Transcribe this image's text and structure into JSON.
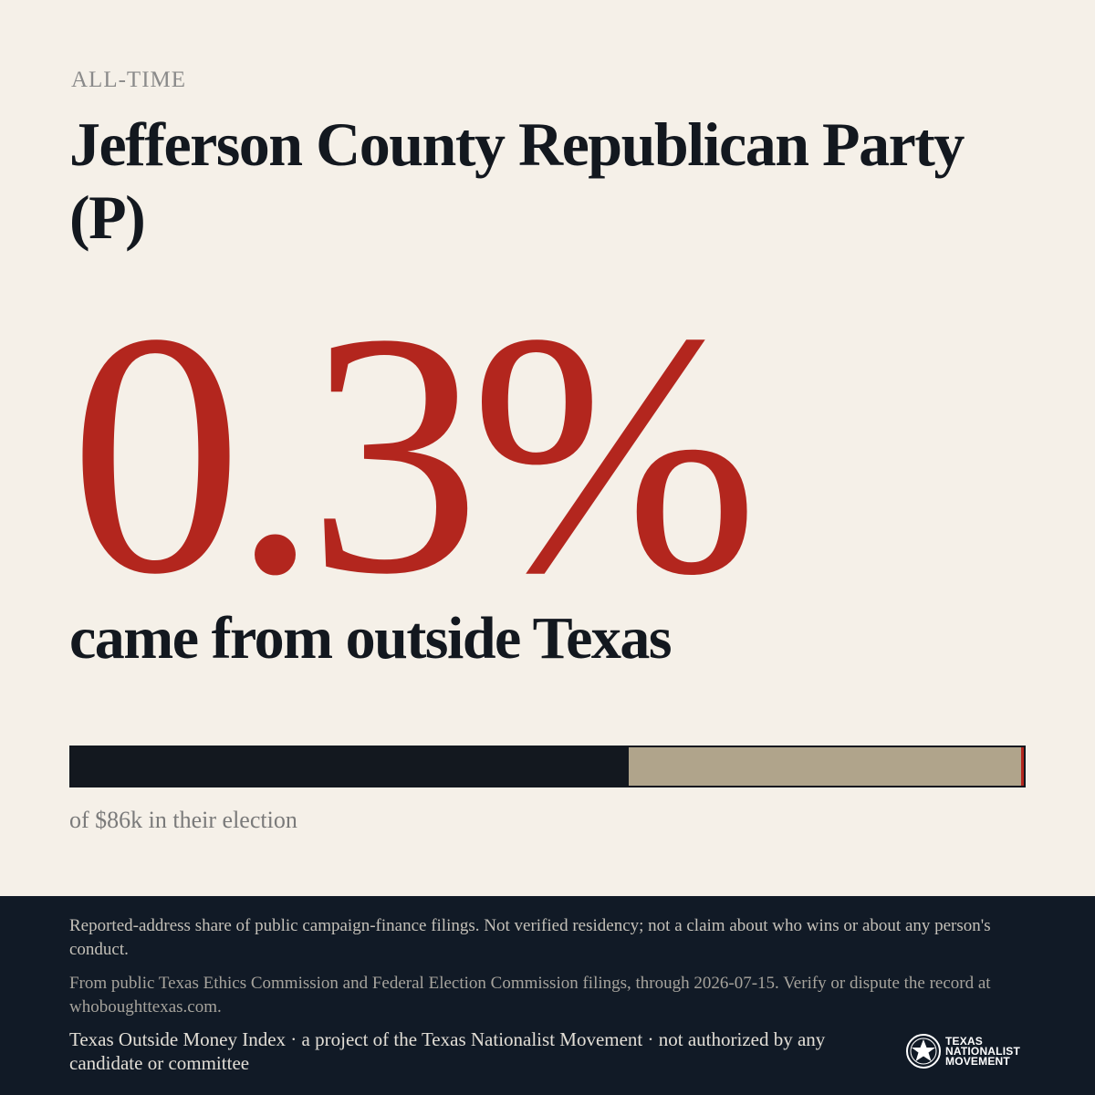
{
  "header": {
    "eyebrow": "ALL-TIME",
    "title": "Jefferson County Republican Party (P)"
  },
  "stat": {
    "value": "0.3%",
    "caption": "came from outside Texas"
  },
  "bar": {
    "dark_fraction": 0.585,
    "red_fraction": 0.003,
    "colors": {
      "dark": "#13181f",
      "tan": "#b0a48b",
      "red": "#b3261e"
    }
  },
  "total_text": "of $86k in their election",
  "footer": {
    "disclaimer": "Reported-address share of public campaign-finance filings. Not verified residency; not a claim about who wins or about any person's conduct.",
    "source": "From public Texas Ethics Commission and Federal Election Commission filings, through 2026-07-15. Verify or dispute the record at whoboughttexas.com.",
    "credit": "Texas Outside Money Index · a project of the Texas Nationalist Movement · not authorized by any candidate or committee",
    "logo": {
      "icon": "star-seal-icon",
      "line1": "TEXAS",
      "line2": "NATIONALIST",
      "line3": "MOVEMENT"
    }
  },
  "colors": {
    "background": "#f5f0e8",
    "accent": "#b3261e",
    "footer_bg": "#111a26"
  }
}
